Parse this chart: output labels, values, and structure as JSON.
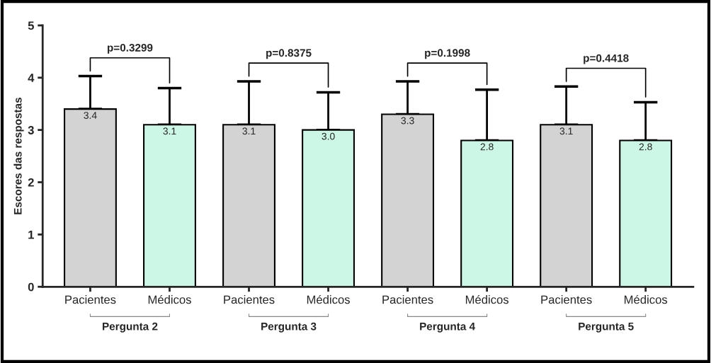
{
  "chart_data": {
    "type": "bar",
    "ylabel": "Escores das respostas",
    "categories": [
      "Pacientes",
      "Médicos",
      "Pacientes",
      "Médicos",
      "Pacientes",
      "Médicos",
      "Pacientes",
      "Médicos"
    ],
    "values": [
      3.4,
      3.1,
      3.1,
      3.0,
      3.3,
      2.8,
      3.1,
      2.8
    ],
    "colors": [
      "#d3d3d3",
      "#ccf7e6",
      "#d3d3d3",
      "#ccf7e6",
      "#d3d3d3",
      "#ccf7e6",
      "#d3d3d3",
      "#ccf7e6"
    ],
    "errors": [
      [
        3.4,
        4.03
      ],
      [
        3.1,
        3.8
      ],
      [
        3.1,
        3.93
      ],
      [
        3.0,
        3.72
      ],
      [
        3.3,
        3.93
      ],
      [
        2.8,
        3.77
      ],
      [
        3.1,
        3.83
      ],
      [
        2.8,
        3.53
      ]
    ],
    "value_labels": [
      "3.4",
      "3.1",
      "3.1",
      "3.0",
      "3.3",
      "2.8",
      "3.1",
      "2.8"
    ],
    "ylim": [
      0,
      5
    ],
    "yticks": [
      0,
      1,
      2,
      3,
      4,
      5
    ],
    "grid": false,
    "legend": false,
    "annotations": [
      "p=0.3299",
      "p=0.8375",
      "p=0.1998",
      "p=0.4418",
      "Pergunta 2",
      "Pergunta 3",
      "Pergunta 4",
      "Pergunta 5"
    ]
  }
}
